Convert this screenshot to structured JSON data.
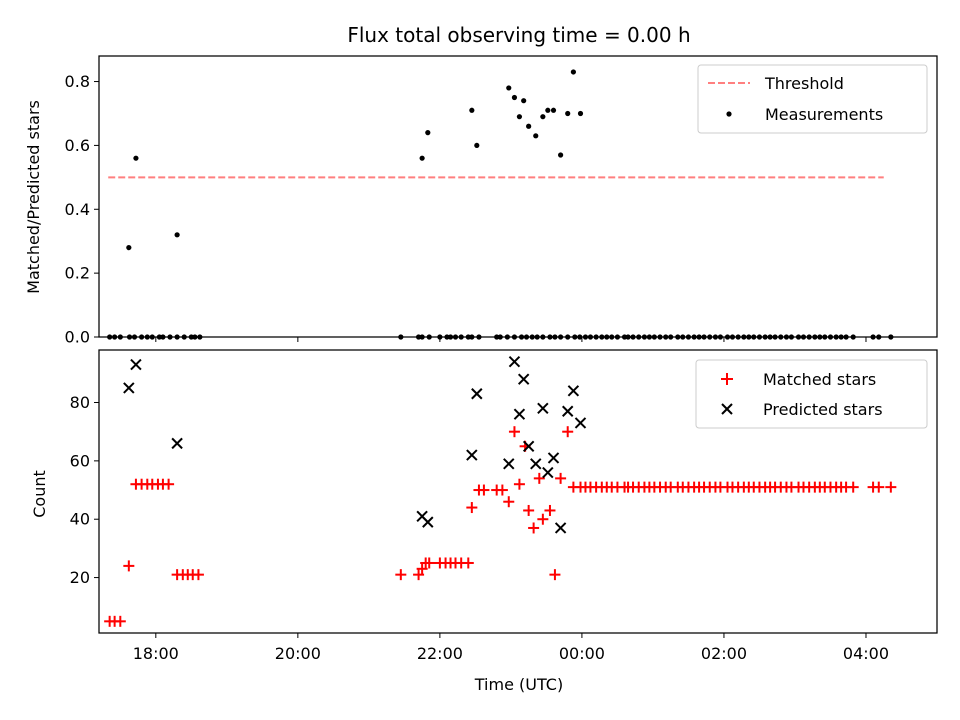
{
  "figure": {
    "title": "Flux total observing time = 0.00 h",
    "xlabel": "Time (UTC)"
  },
  "colors": {
    "threshold": "#ff7f7f",
    "measurements": "#000000",
    "matched": "#ff0000",
    "predicted": "#000000"
  },
  "chart_data": [
    {
      "type": "scatter",
      "ylabel": "Matched/Predicted stars",
      "xlim": [
        17.2,
        5.0
      ],
      "ylim": [
        0,
        0.88
      ],
      "yticks": [
        0.0,
        0.2,
        0.4,
        0.6,
        0.8
      ],
      "ytick_labels": [
        "0.0",
        "0.2",
        "0.4",
        "0.6",
        "0.8"
      ],
      "xticks": [
        18,
        20,
        22,
        0,
        2,
        4
      ],
      "legend": {
        "placement": "top-right",
        "entries": [
          "Threshold",
          "Measurements"
        ]
      },
      "series": [
        {
          "name": "Threshold",
          "kind": "line",
          "x": [
            17.33,
            28.25
          ],
          "y": [
            0.5,
            0.5
          ]
        },
        {
          "name": "Measurements",
          "kind": "dots",
          "x": [
            17.35,
            17.42,
            17.5,
            17.63,
            17.7,
            17.8,
            17.88,
            17.95,
            18.05,
            18.1,
            18.2,
            18.3,
            18.4,
            18.5,
            18.55,
            18.62,
            21.45,
            21.7,
            21.75,
            21.85,
            22.0,
            22.1,
            22.15,
            22.22,
            22.3,
            22.4,
            22.45,
            22.55,
            22.8,
            22.85,
            22.95,
            23.05,
            23.15,
            23.22,
            23.3,
            23.37,
            23.45,
            23.55,
            23.62,
            23.7,
            23.8,
            23.9,
            23.97,
            0.05,
            0.12,
            0.2,
            0.28,
            0.35,
            0.42,
            0.5,
            0.6,
            0.65,
            0.72,
            0.8,
            0.88,
            0.95,
            1.02,
            1.1,
            1.18,
            1.25,
            1.35,
            1.42,
            1.5,
            1.58,
            1.65,
            1.72,
            1.8,
            1.88,
            1.95,
            2.05,
            2.12,
            2.2,
            2.28,
            2.35,
            2.42,
            2.5,
            2.58,
            2.65,
            2.72,
            2.8,
            2.88,
            2.95,
            3.05,
            3.12,
            3.2,
            3.28,
            3.35,
            3.42,
            3.5,
            3.58,
            3.65,
            3.72,
            3.82,
            4.1,
            4.18,
            4.35
          ],
          "y": [
            0.0,
            0.0,
            0.0,
            0.0,
            0.0,
            0.0,
            0.0,
            0.0,
            0.0,
            0.0,
            0.0,
            0.0,
            0.0,
            0.0,
            0.0,
            0.0,
            0.0,
            0.0,
            0.0,
            0.0,
            0.0,
            0.0,
            0.0,
            0.0,
            0.0,
            0.0,
            0.0,
            0.0,
            0.0,
            0.0,
            0.0,
            0.0,
            0.0,
            0.0,
            0.0,
            0.0,
            0.0,
            0.0,
            0.0,
            0.0,
            0.0,
            0.0,
            0.0,
            0.0,
            0.0,
            0.0,
            0.0,
            0.0,
            0.0,
            0.0,
            0.0,
            0.0,
            0.0,
            0.0,
            0.0,
            0.0,
            0.0,
            0.0,
            0.0,
            0.0,
            0.0,
            0.0,
            0.0,
            0.0,
            0.0,
            0.0,
            0.0,
            0.0,
            0.0,
            0.0,
            0.0,
            0.0,
            0.0,
            0.0,
            0.0,
            0.0,
            0.0,
            0.0,
            0.0,
            0.0,
            0.0,
            0.0,
            0.0,
            0.0,
            0.0,
            0.0,
            0.0,
            0.0,
            0.0,
            0.0,
            0.0,
            0.0,
            0.0,
            0.0,
            0.0,
            0.0
          ]
        },
        {
          "name": "Measurements",
          "kind": "dots",
          "x": [
            17.62,
            17.72,
            18.3,
            21.75,
            21.83,
            22.45,
            22.52,
            22.97,
            23.05,
            23.12,
            23.18,
            23.25,
            23.35,
            23.45,
            23.52,
            23.6,
            23.7,
            23.8,
            23.88,
            23.98
          ],
          "y": [
            0.28,
            0.56,
            0.32,
            0.56,
            0.64,
            0.71,
            0.6,
            0.78,
            0.75,
            0.69,
            0.74,
            0.66,
            0.63,
            0.69,
            0.71,
            0.71,
            0.57,
            0.7,
            0.83,
            0.7
          ]
        }
      ]
    },
    {
      "type": "scatter",
      "ylabel": "Count",
      "xlim": [
        17.2,
        5.0
      ],
      "ylim": [
        1,
        98
      ],
      "yticks": [
        20,
        40,
        60,
        80
      ],
      "ytick_labels": [
        "20",
        "40",
        "60",
        "80"
      ],
      "xticks": [
        18,
        20,
        22,
        0,
        2,
        4
      ],
      "xtick_labels": [
        "18:00",
        "20:00",
        "22:00",
        "00:00",
        "02:00",
        "04:00"
      ],
      "legend": {
        "placement": "top-right",
        "entries": [
          "Matched stars",
          "Predicted stars"
        ]
      },
      "series": [
        {
          "name": "Matched stars",
          "kind": "plus",
          "x": [
            17.35,
            17.42,
            17.5,
            17.62,
            17.72,
            17.8,
            17.88,
            17.95,
            18.03,
            18.1,
            18.18,
            18.3,
            18.38,
            18.45,
            18.52,
            18.6,
            21.45,
            21.7,
            21.75,
            21.8,
            21.85,
            22.0,
            22.08,
            22.15,
            22.22,
            22.3,
            22.4,
            22.45,
            22.55,
            22.62,
            22.8,
            22.88,
            22.97,
            23.05,
            23.12,
            23.2,
            23.25,
            23.32,
            23.4,
            23.45,
            23.55,
            23.62,
            23.7,
            23.8,
            23.88,
            23.98,
            0.05,
            0.12,
            0.2,
            0.28,
            0.35,
            0.42,
            0.5,
            0.6,
            0.65,
            0.72,
            0.8,
            0.88,
            0.95,
            1.02,
            1.1,
            1.18,
            1.25,
            1.35,
            1.42,
            1.5,
            1.58,
            1.65,
            1.72,
            1.8,
            1.88,
            1.95,
            2.05,
            2.12,
            2.2,
            2.28,
            2.35,
            2.42,
            2.5,
            2.58,
            2.65,
            2.72,
            2.8,
            2.88,
            2.95,
            3.05,
            3.12,
            3.2,
            3.28,
            3.35,
            3.42,
            3.5,
            3.58,
            3.65,
            3.72,
            3.82,
            4.1,
            4.18,
            4.35
          ],
          "y": [
            5,
            5,
            5,
            24,
            52,
            52,
            52,
            52,
            52,
            52,
            52,
            21,
            21,
            21,
            21,
            21,
            21,
            21,
            23,
            25,
            25,
            25,
            25,
            25,
            25,
            25,
            25,
            44,
            50,
            50,
            50,
            50,
            46,
            70,
            52,
            65,
            43,
            37,
            54,
            40,
            43,
            21,
            54,
            70,
            51,
            51,
            51,
            51,
            51,
            51,
            51,
            51,
            51,
            51,
            51,
            51,
            51,
            51,
            51,
            51,
            51,
            51,
            51,
            51,
            51,
            51,
            51,
            51,
            51,
            51,
            51,
            51,
            51,
            51,
            51,
            51,
            51,
            51,
            51,
            51,
            51,
            51,
            51,
            51,
            51,
            51,
            51,
            51,
            51,
            51,
            51,
            51,
            51,
            51,
            51,
            51,
            51,
            51,
            51
          ]
        },
        {
          "name": "Predicted stars",
          "kind": "x",
          "x": [
            17.62,
            17.72,
            18.3,
            21.75,
            21.83,
            22.45,
            22.52,
            22.97,
            23.05,
            23.12,
            23.18,
            23.25,
            23.35,
            23.45,
            23.52,
            23.6,
            23.7,
            23.8,
            23.88,
            23.98
          ],
          "y": [
            85,
            93,
            66,
            41,
            39,
            62,
            83,
            59,
            94,
            76,
            88,
            65,
            59,
            78,
            56,
            61,
            37,
            77,
            84,
            73
          ]
        }
      ]
    }
  ]
}
